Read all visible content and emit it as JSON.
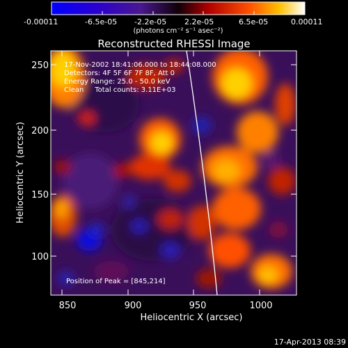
{
  "colorbar": {
    "tick_labels": [
      "-0.00011",
      "-6.5e-05",
      "-2.2e-05",
      "2.2e-05",
      "6.5e-05",
      "0.00011"
    ],
    "units": "(photons cm⁻² s⁻¹ asec⁻²)"
  },
  "title": "Reconstructed RHESSI Image",
  "annotations": {
    "line1": "17-Nov-2002 18:41:06.000 to 18:44:08.000",
    "line2": "Detectors: 4F 5F 6F 7F 8F, Att 0",
    "line3": "Energy Range: 25.0 - 50.0 keV",
    "line4": "Clean     Total counts: 3.11E+03",
    "peak": "Position of Peak = [845,214]"
  },
  "axes": {
    "xlabel": "Heliocentric X (arcsec)",
    "ylabel": "Heliocentric Y (arcsec)",
    "xticks": [
      "850",
      "900",
      "950",
      "1000"
    ],
    "yticks": [
      "100",
      "150",
      "200",
      "250"
    ]
  },
  "timestamp": "17-Apr-2013 08:39",
  "colors": {
    "background": "#000000",
    "limb": "#ffffff"
  }
}
